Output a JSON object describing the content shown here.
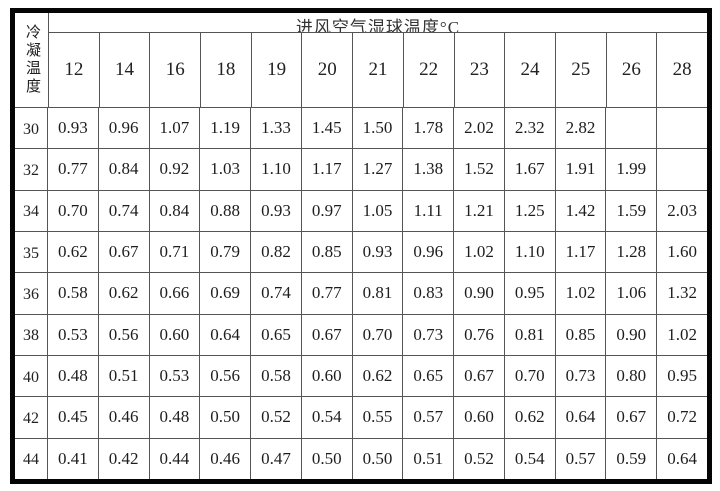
{
  "table": {
    "corner_label": "冷凝温度",
    "title": "进风空气湿球温度°C",
    "col_headers": [
      "12",
      "14",
      "16",
      "18",
      "19",
      "20",
      "21",
      "22",
      "23",
      "24",
      "25",
      "26",
      "28"
    ],
    "rows": [
      {
        "label": "30",
        "values": [
          "0.93",
          "0.96",
          "1.07",
          "1.19",
          "1.33",
          "1.45",
          "1.50",
          "1.78",
          "2.02",
          "2.32",
          "2.82",
          "",
          ""
        ]
      },
      {
        "label": "32",
        "values": [
          "0.77",
          "0.84",
          "0.92",
          "1.03",
          "1.10",
          "1.17",
          "1.27",
          "1.38",
          "1.52",
          "1.67",
          "1.91",
          "1.99",
          ""
        ]
      },
      {
        "label": "34",
        "values": [
          "0.70",
          "0.74",
          "0.84",
          "0.88",
          "0.93",
          "0.97",
          "1.05",
          "1.11",
          "1.21",
          "1.25",
          "1.42",
          "1.59",
          "2.03"
        ]
      },
      {
        "label": "35",
        "values": [
          "0.62",
          "0.67",
          "0.71",
          "0.79",
          "0.82",
          "0.85",
          "0.93",
          "0.96",
          "1.02",
          "1.10",
          "1.17",
          "1.28",
          "1.60"
        ]
      },
      {
        "label": "36",
        "values": [
          "0.58",
          "0.62",
          "0.66",
          "0.69",
          "0.74",
          "0.77",
          "0.81",
          "0.83",
          "0.90",
          "0.95",
          "1.02",
          "1.06",
          "1.32"
        ]
      },
      {
        "label": "38",
        "values": [
          "0.53",
          "0.56",
          "0.60",
          "0.64",
          "0.65",
          "0.67",
          "0.70",
          "0.73",
          "0.76",
          "0.81",
          "0.85",
          "0.90",
          "1.02"
        ]
      },
      {
        "label": "40",
        "values": [
          "0.48",
          "0.51",
          "0.53",
          "0.56",
          "0.58",
          "0.60",
          "0.62",
          "0.65",
          "0.67",
          "0.70",
          "0.73",
          "0.80",
          "0.95"
        ]
      },
      {
        "label": "42",
        "values": [
          "0.45",
          "0.46",
          "0.48",
          "0.50",
          "0.52",
          "0.54",
          "0.55",
          "0.57",
          "0.60",
          "0.62",
          "0.64",
          "0.67",
          "0.72"
        ]
      },
      {
        "label": "44",
        "values": [
          "0.41",
          "0.42",
          "0.44",
          "0.46",
          "0.47",
          "0.50",
          "0.50",
          "0.51",
          "0.52",
          "0.54",
          "0.57",
          "0.59",
          "0.64"
        ]
      }
    ],
    "colors": {
      "outer_border": "#050505",
      "grid_line": "#555555",
      "text": "#1f1f1f",
      "background": "#ffffff"
    }
  }
}
